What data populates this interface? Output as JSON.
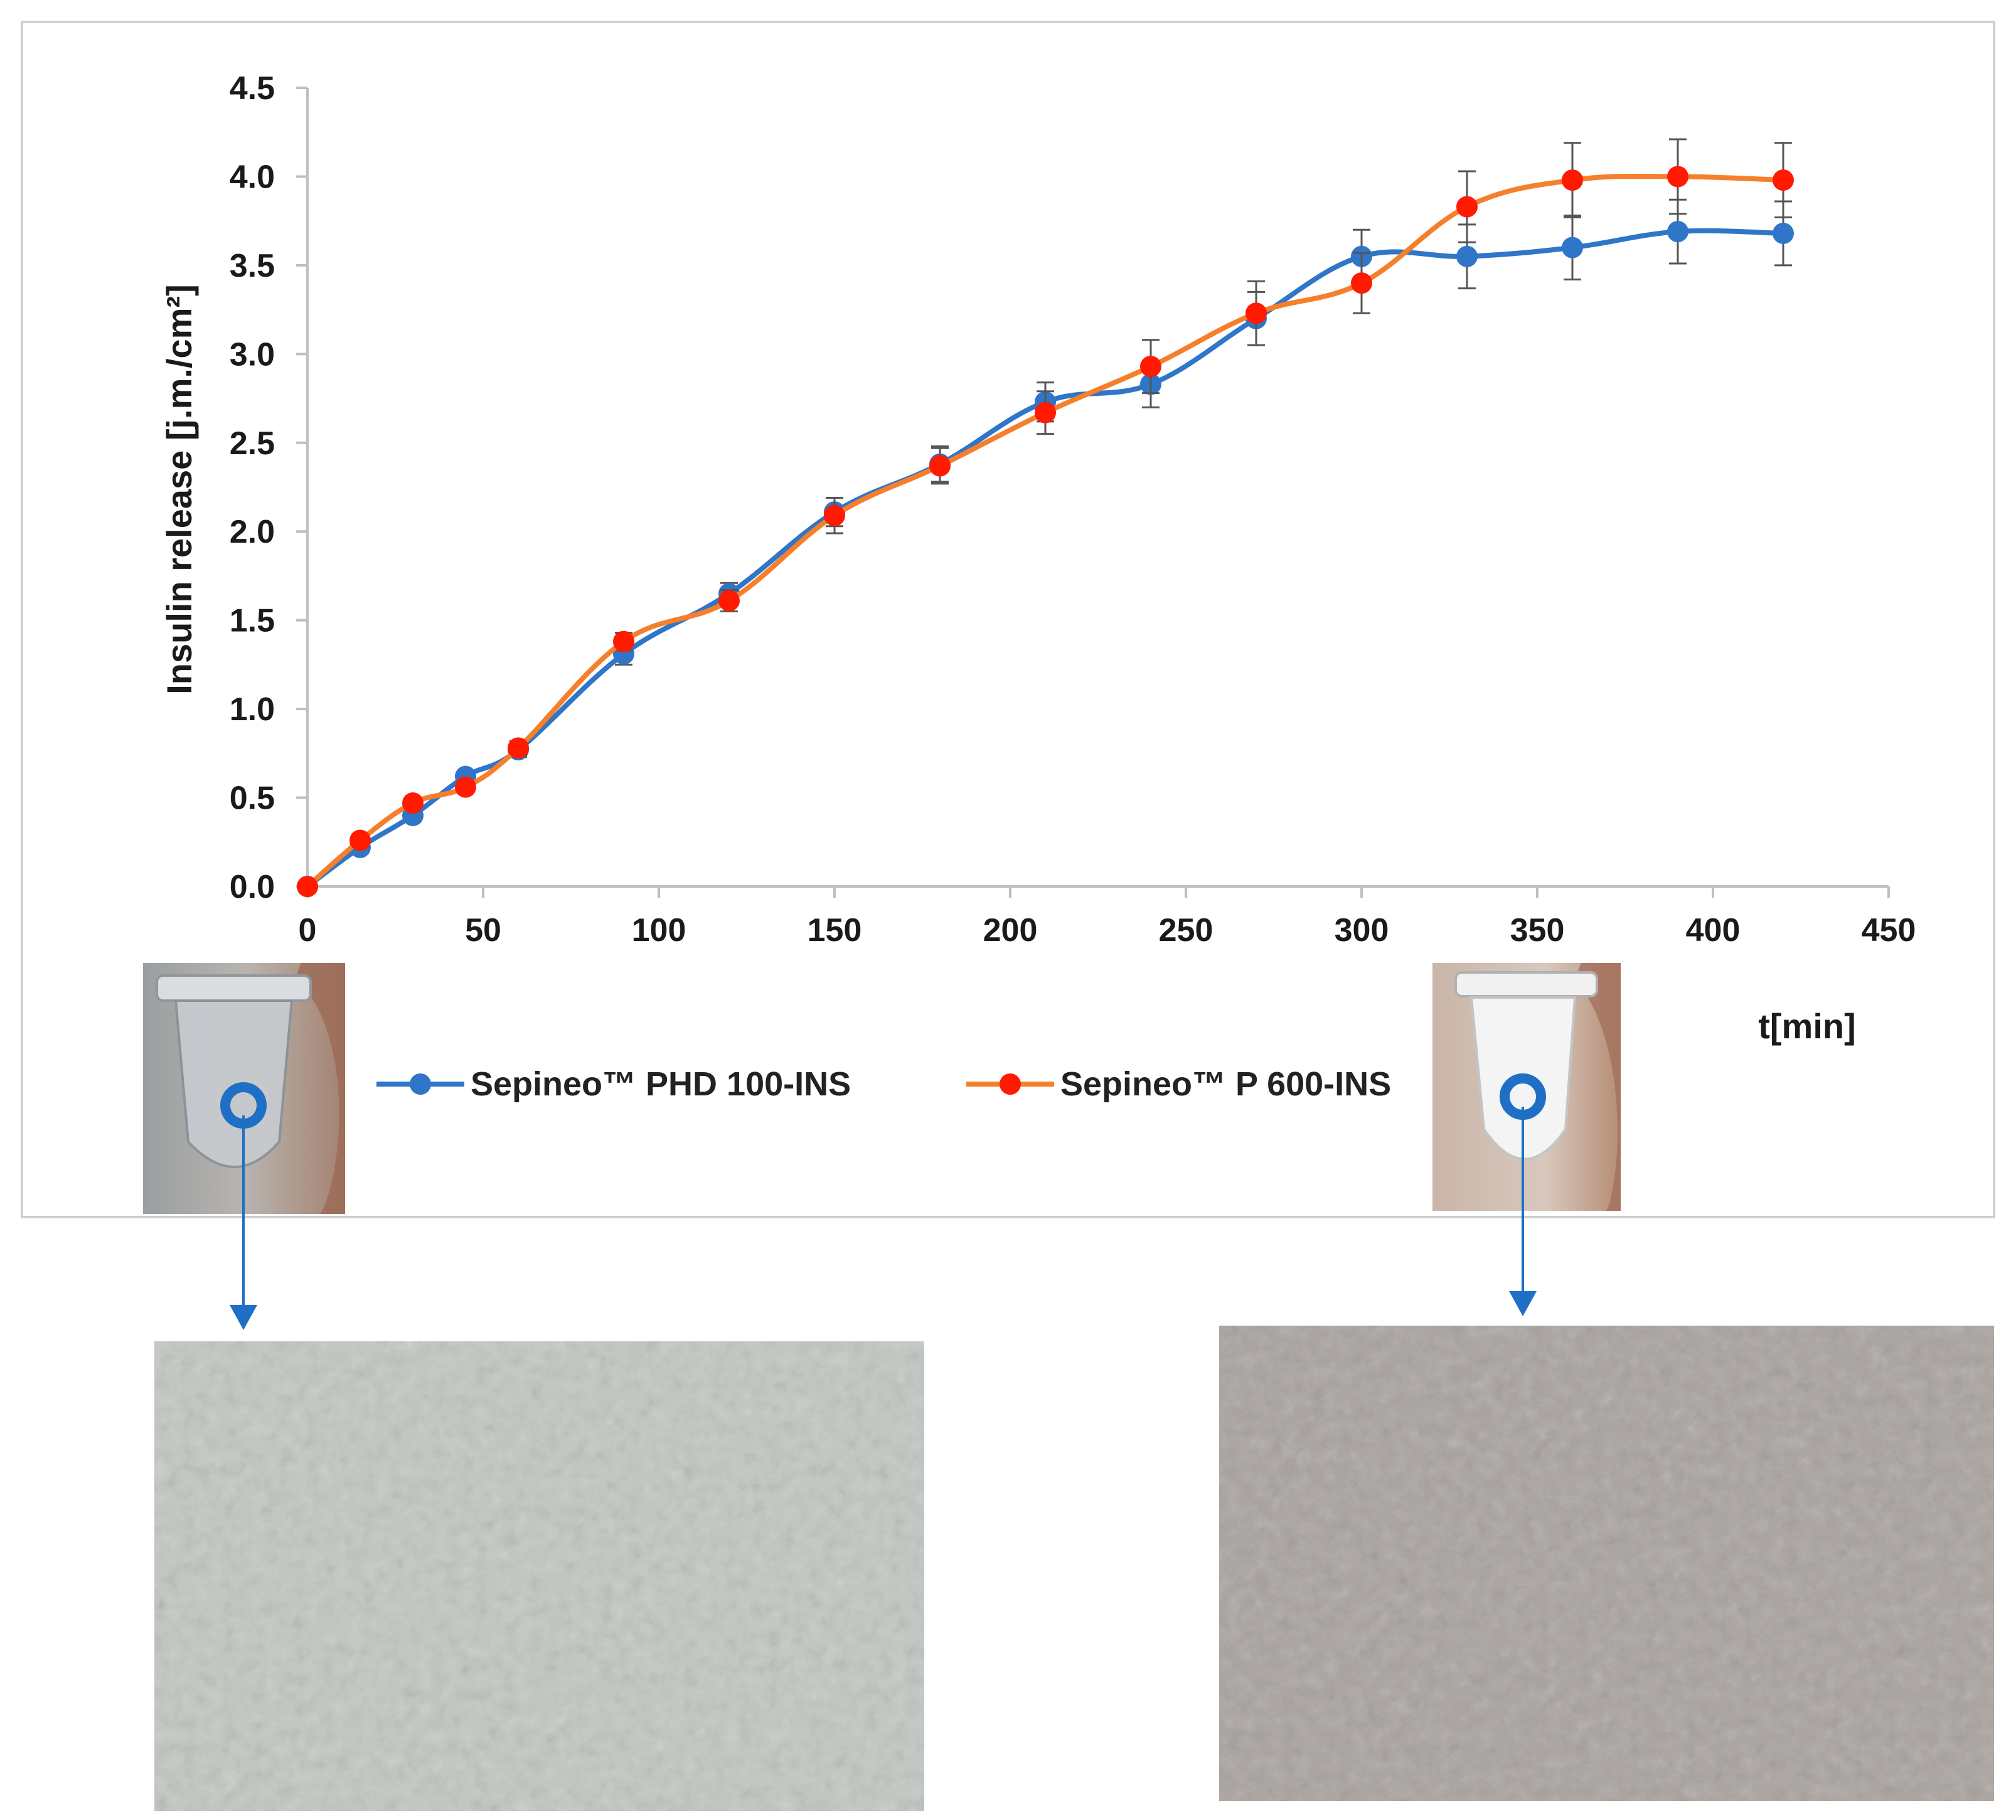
{
  "chart_data": {
    "type": "line",
    "title": "",
    "xlabel": "t[min]",
    "ylabel": "Insulin release [j.m./cm²]",
    "xlim": [
      0,
      450
    ],
    "ylim": [
      0,
      4.5
    ],
    "x_ticks": [
      "0",
      "50",
      "100",
      "150",
      "200",
      "250",
      "300",
      "350",
      "400",
      "450"
    ],
    "y_ticks": [
      "0.0",
      "0.5",
      "1.0",
      "1.5",
      "2.0",
      "2.5",
      "3.0",
      "3.5",
      "4.0",
      "4.5"
    ],
    "grid": false,
    "legend_position": "bottom",
    "x": [
      0,
      15,
      30,
      45,
      60,
      90,
      120,
      150,
      180,
      210,
      240,
      270,
      300,
      330,
      360,
      390,
      420
    ],
    "series": [
      {
        "name": "Sepineo™ PHD 100-INS",
        "color": "#2f75c8",
        "values": [
          0,
          0.22,
          0.4,
          0.62,
          0.77,
          1.31,
          1.65,
          2.11,
          2.38,
          2.73,
          2.83,
          3.2,
          3.55,
          3.55,
          3.6,
          3.69,
          3.68
        ],
        "errors": [
          0,
          0.03,
          0.03,
          0.03,
          0.04,
          0.06,
          0.06,
          0.08,
          0.1,
          0.11,
          0.13,
          0.15,
          0.15,
          0.18,
          0.18,
          0.18,
          0.18
        ]
      },
      {
        "name": "Sepineo™ P 600-INS",
        "color": "#f57f2b",
        "marker_color": "#ff1a00",
        "values": [
          0,
          0.26,
          0.47,
          0.56,
          0.78,
          1.38,
          1.61,
          2.09,
          2.37,
          2.67,
          2.93,
          3.23,
          3.4,
          3.83,
          3.98,
          4.0,
          3.98
        ],
        "errors": [
          0,
          0.03,
          0.03,
          0.03,
          0.04,
          0.05,
          0.06,
          0.1,
          0.1,
          0.12,
          0.15,
          0.18,
          0.17,
          0.2,
          0.21,
          0.21,
          0.21
        ]
      }
    ]
  },
  "images": {
    "left_tube": "clear-tube-photo",
    "right_tube": "cloudy-white-tube-photo",
    "left_micrograph": "micrograph-clear",
    "right_micrograph": "micrograph-grainy"
  }
}
